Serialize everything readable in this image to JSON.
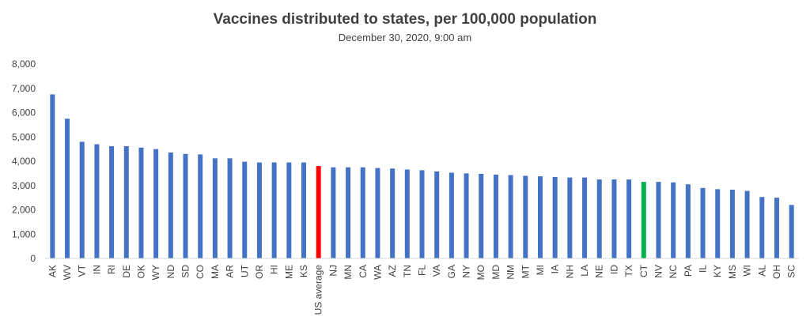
{
  "chart_data": {
    "type": "bar",
    "title": "Vaccines distributed to states, per 100,000 population",
    "subtitle": "December 30, 2020, 9:00 am",
    "xlabel": "",
    "ylabel": "",
    "ylim": [
      0,
      8000
    ],
    "yticks": [
      0,
      1000,
      2000,
      3000,
      4000,
      5000,
      6000,
      7000,
      8000
    ],
    "ytick_labels": [
      "0",
      "1,000",
      "2,000",
      "3,000",
      "4,000",
      "5,000",
      "6,000",
      "7,000",
      "8,000"
    ],
    "grid": false,
    "legend": "none",
    "categories": [
      "AK",
      "WV",
      "VT",
      "IN",
      "RI",
      "DE",
      "OK",
      "WY",
      "ND",
      "SD",
      "CO",
      "MA",
      "AR",
      "UT",
      "OR",
      "HI",
      "ME",
      "KS",
      "US average",
      "NJ",
      "MN",
      "CA",
      "WA",
      "AZ",
      "TN",
      "FL",
      "VA",
      "GA",
      "NY",
      "MO",
      "MD",
      "NM",
      "MT",
      "MI",
      "IA",
      "NH",
      "LA",
      "NE",
      "ID",
      "TX",
      "CT",
      "NV",
      "NC",
      "PA",
      "IL",
      "KY",
      "MS",
      "WI",
      "AL",
      "OH",
      "SC"
    ],
    "values": [
      6750,
      5750,
      4800,
      4700,
      4620,
      4620,
      4560,
      4500,
      4360,
      4300,
      4280,
      4120,
      4120,
      3980,
      3950,
      3950,
      3950,
      3950,
      3800,
      3750,
      3750,
      3750,
      3720,
      3700,
      3660,
      3630,
      3580,
      3530,
      3500,
      3480,
      3450,
      3430,
      3400,
      3380,
      3350,
      3330,
      3330,
      3250,
      3250,
      3250,
      3150,
      3150,
      3130,
      3050,
      2900,
      2850,
      2830,
      2780,
      2530,
      2500,
      2200
    ],
    "colors": {
      "default": "#4472C4",
      "US average": "#FF0000",
      "CT": "#00B050"
    }
  }
}
